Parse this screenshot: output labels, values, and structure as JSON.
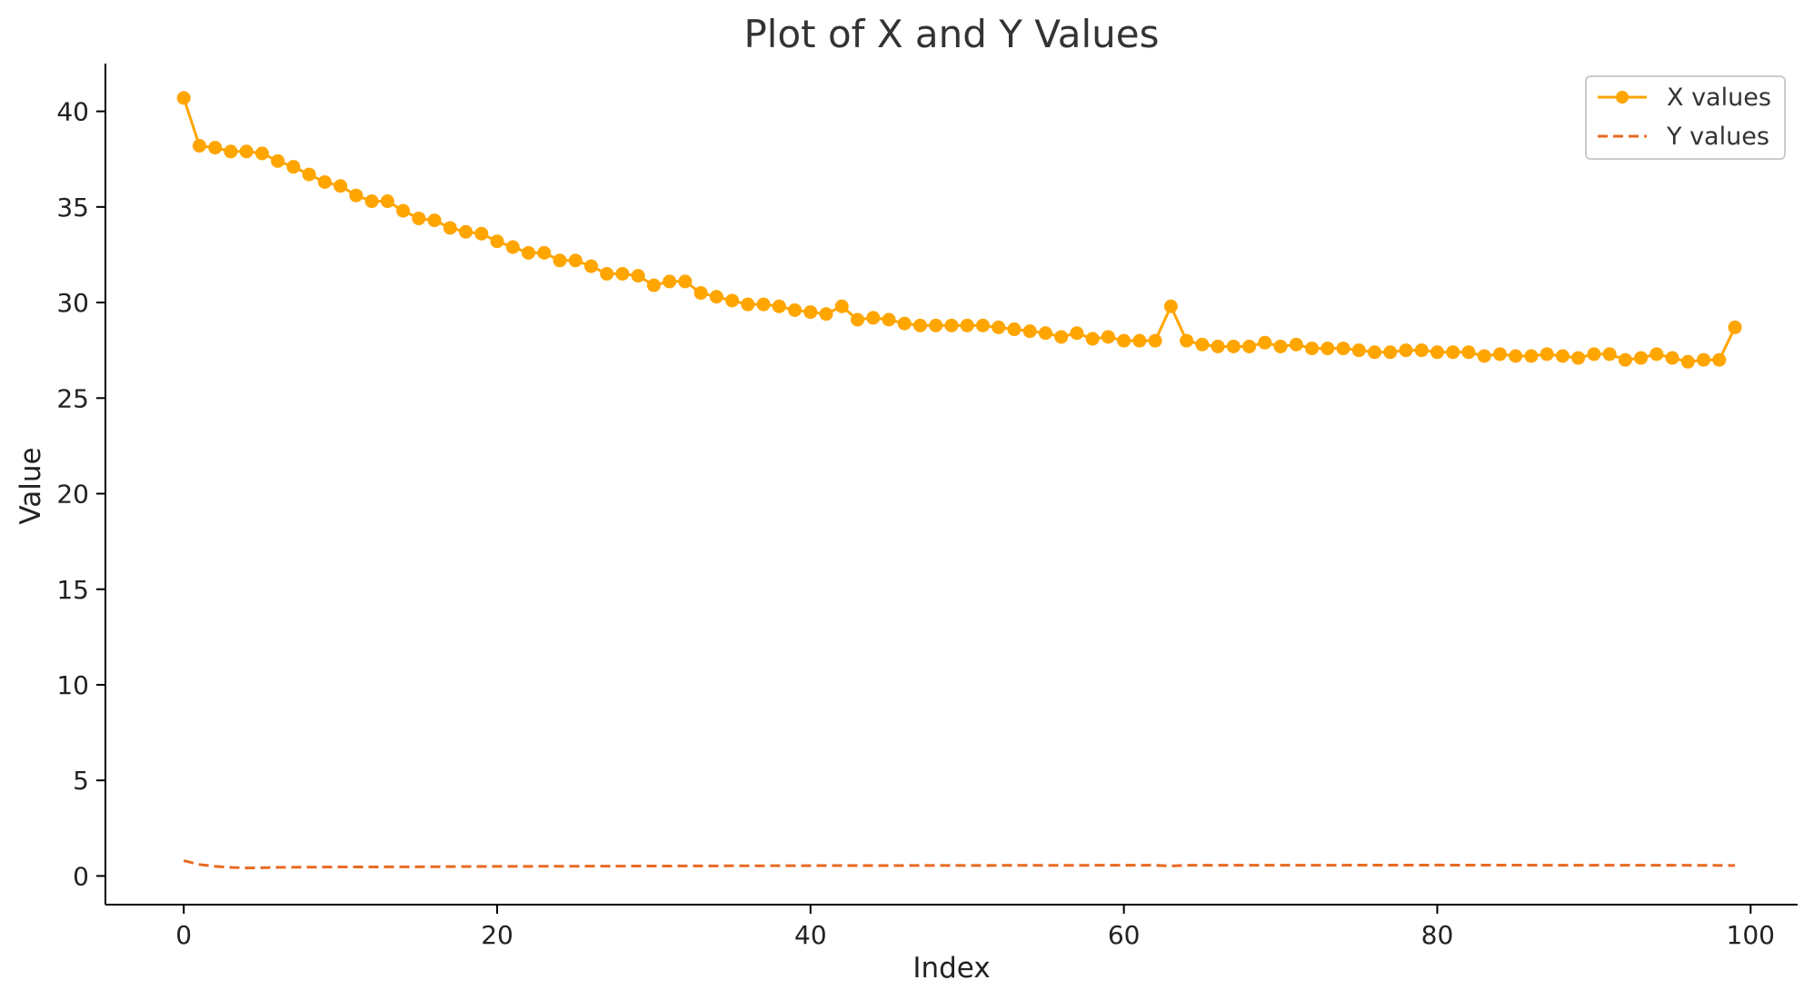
{
  "chart_data": {
    "type": "line",
    "title": "Plot of X and Y Values",
    "xlabel": "Index",
    "ylabel": "Value",
    "xlim": [
      -5,
      103
    ],
    "ylim": [
      -1.5,
      42.5
    ],
    "x_ticks": [
      0,
      20,
      40,
      60,
      80,
      100
    ],
    "y_ticks": [
      0,
      5,
      10,
      15,
      20,
      25,
      30,
      35,
      40
    ],
    "grid": false,
    "legend_position": "top-right",
    "series": [
      {
        "name": "X values",
        "color": "#FFA500",
        "style": "solid-with-markers",
        "x": [
          0,
          1,
          2,
          3,
          4,
          5,
          6,
          7,
          8,
          9,
          10,
          11,
          12,
          13,
          14,
          15,
          16,
          17,
          18,
          19,
          20,
          21,
          22,
          23,
          24,
          25,
          26,
          27,
          28,
          29,
          30,
          31,
          32,
          33,
          34,
          35,
          36,
          37,
          38,
          39,
          40,
          41,
          42,
          43,
          44,
          45,
          46,
          47,
          48,
          49,
          50,
          51,
          52,
          53,
          54,
          55,
          56,
          57,
          58,
          59,
          60,
          61,
          62,
          63,
          64,
          65,
          66,
          67,
          68,
          69,
          70,
          71,
          72,
          73,
          74,
          75,
          76,
          77,
          78,
          79,
          80,
          81,
          82,
          83,
          84,
          85,
          86,
          87,
          88,
          89,
          90,
          91,
          92,
          93,
          94,
          95,
          96,
          97,
          98,
          99
        ],
        "values": [
          40.7,
          38.2,
          38.1,
          37.9,
          37.9,
          37.8,
          37.4,
          37.1,
          36.7,
          36.3,
          36.1,
          35.6,
          35.3,
          35.3,
          34.8,
          34.4,
          34.3,
          33.9,
          33.7,
          33.6,
          33.2,
          32.9,
          32.6,
          32.6,
          32.2,
          32.2,
          31.9,
          31.5,
          31.5,
          31.4,
          30.9,
          31.1,
          31.1,
          30.5,
          30.3,
          30.1,
          29.9,
          29.9,
          29.8,
          29.6,
          29.5,
          29.4,
          29.8,
          29.1,
          29.2,
          29.1,
          28.9,
          28.8,
          28.8,
          28.8,
          28.8,
          28.8,
          28.7,
          28.6,
          28.5,
          28.4,
          28.2,
          28.4,
          28.1,
          28.2,
          28.0,
          28.0,
          28.0,
          29.8,
          28.0,
          27.8,
          27.7,
          27.7,
          27.7,
          27.9,
          27.7,
          27.8,
          27.6,
          27.6,
          27.6,
          27.5,
          27.4,
          27.4,
          27.5,
          27.5,
          27.4,
          27.4,
          27.4,
          27.2,
          27.3,
          27.2,
          27.2,
          27.3,
          27.2,
          27.1,
          27.3,
          27.3,
          27.0,
          27.1,
          27.3,
          27.1,
          26.9,
          27.0,
          27.0,
          28.7
        ]
      },
      {
        "name": "Y values",
        "color": "#E86A22",
        "style": "dashed",
        "x": [
          0,
          1,
          2,
          3,
          4,
          5,
          6,
          8,
          10,
          15,
          20,
          25,
          30,
          40,
          50,
          60,
          62,
          63,
          64,
          70,
          80,
          90,
          95,
          99
        ],
        "values": [
          0.8,
          0.6,
          0.5,
          0.45,
          0.42,
          0.43,
          0.45,
          0.46,
          0.47,
          0.48,
          0.5,
          0.51,
          0.52,
          0.54,
          0.55,
          0.56,
          0.56,
          0.52,
          0.56,
          0.56,
          0.57,
          0.56,
          0.56,
          0.55
        ]
      }
    ]
  }
}
